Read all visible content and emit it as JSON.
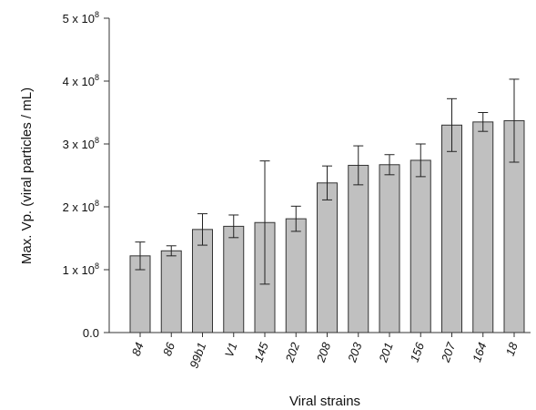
{
  "chart_data": {
    "type": "bar",
    "xlabel": "Viral strains",
    "ylabel": "Max. Vp. (viral particles / mL)",
    "ylim": [
      0,
      500000000
    ],
    "yticks": [
      {
        "value": 0,
        "label": "0.0"
      },
      {
        "value": 100000000,
        "label": "1 x 10",
        "exp": "8"
      },
      {
        "value": 200000000,
        "label": "2 x 10",
        "exp": "8"
      },
      {
        "value": 300000000,
        "label": "3 x 10",
        "exp": "8"
      },
      {
        "value": 400000000,
        "label": "4 x 10",
        "exp": "8"
      },
      {
        "value": 500000000,
        "label": "5 x 10",
        "exp": "8"
      }
    ],
    "categories": [
      "84",
      "86",
      "99b1",
      "V1",
      "145",
      "202",
      "208",
      "203",
      "201",
      "156",
      "207",
      "164",
      "18"
    ],
    "values": [
      122000000,
      130000000,
      164000000,
      169000000,
      175000000,
      181000000,
      238000000,
      266000000,
      267000000,
      274000000,
      330000000,
      335000000,
      337000000
    ],
    "errors": [
      22000000,
      8000000,
      25000000,
      18000000,
      98000000,
      20000000,
      27000000,
      31000000,
      16000000,
      26000000,
      42000000,
      15000000,
      66000000
    ],
    "grid": false,
    "bar_color": "#c0c0c0",
    "edge_color": "#333333"
  }
}
